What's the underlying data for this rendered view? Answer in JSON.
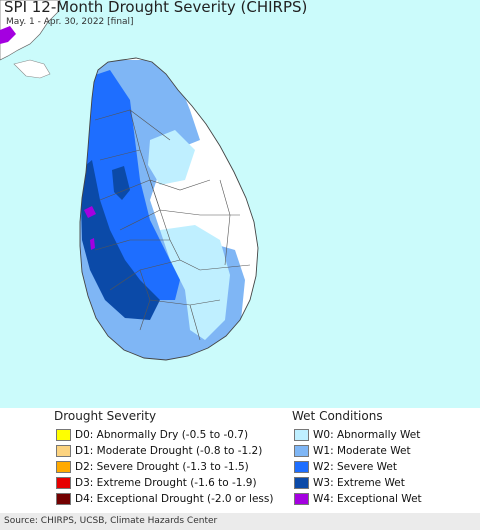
{
  "map": {
    "title": "SPI 12-Month Drought Severity (CHIRPS)",
    "subtitle": "May. 1 - Apr. 30, 2022 [final]"
  },
  "legend": {
    "drought": {
      "title": "Drought Severity",
      "items": [
        {
          "label": "D0: Abnormally Dry (-0.5 to -0.7)",
          "color": "#ffff00"
        },
        {
          "label": "D1: Moderate Drought (-0.8 to -1.2)",
          "color": "#fcd37f"
        },
        {
          "label": "D2: Severe Drought (-1.3 to -1.5)",
          "color": "#ffaa00"
        },
        {
          "label": "D3: Extreme Drought (-1.6 to -1.9)",
          "color": "#e60000"
        },
        {
          "label": "D4: Exceptional Drought (-2.0 or less)",
          "color": "#730000"
        }
      ]
    },
    "wet": {
      "title": "Wet Conditions",
      "items": [
        {
          "label": "W0: Abnormally Wet",
          "color": "#bfefff"
        },
        {
          "label": "W1: Moderate Wet",
          "color": "#7fb6f5"
        },
        {
          "label": "W2: Severe Wet",
          "color": "#1e6eff"
        },
        {
          "label": "W3: Extreme Wet",
          "color": "#0b4aa8"
        },
        {
          "label": "W4: Exceptional Wet",
          "color": "#a400e0"
        }
      ]
    }
  },
  "source": "Source: CHIRPS, UCSB, Climate Hazards Center"
}
